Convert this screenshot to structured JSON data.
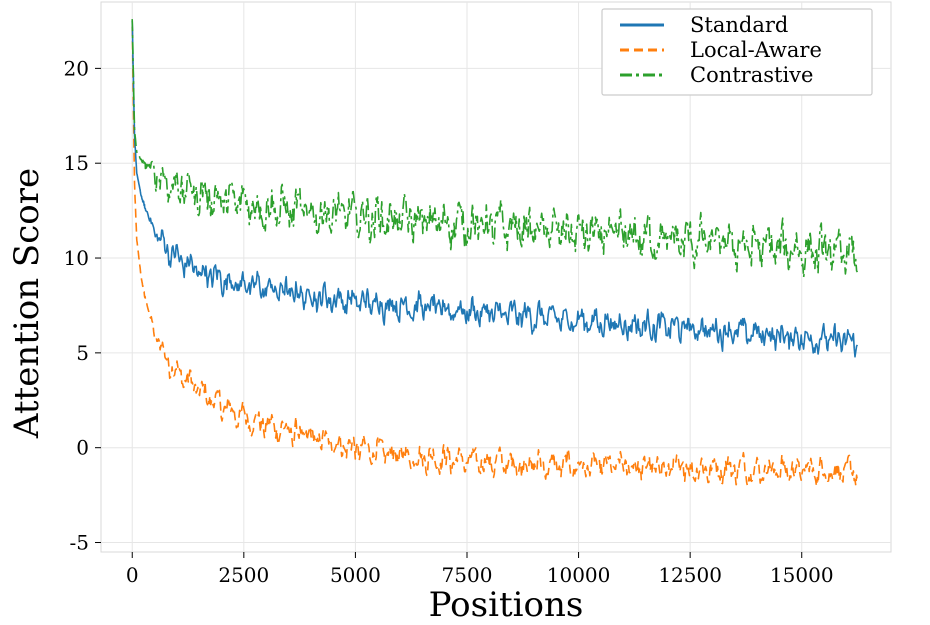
{
  "chart_data": {
    "type": "line",
    "xlabel": "Positions",
    "ylabel": "Attention Score",
    "xlim": [
      -700,
      17000
    ],
    "ylim": [
      -5.5,
      23.5
    ],
    "xticks": [
      0,
      2500,
      5000,
      7500,
      10000,
      12500,
      15000
    ],
    "xtick_labels": [
      "0",
      "2500",
      "5000",
      "7500",
      "10000",
      "12500",
      "15000"
    ],
    "yticks": [
      -5,
      0,
      5,
      10,
      15,
      20
    ],
    "ytick_labels": [
      "-5",
      "0",
      "5",
      "10",
      "15",
      "20"
    ],
    "grid": true,
    "legend_position": "top-right",
    "series": [
      {
        "name": "Standard",
        "color": "#1f77b4",
        "dash": "solid",
        "x": [
          0,
          50,
          100,
          200,
          300,
          500,
          750,
          1000,
          1500,
          2000,
          2500,
          3000,
          4000,
          5000,
          6000,
          7500,
          9000,
          10000,
          11000,
          12500,
          14000,
          15000,
          15500,
          16000,
          16250
        ],
        "values": [
          22.5,
          16.5,
          14.5,
          13.3,
          12.6,
          11.4,
          10.6,
          10.0,
          9.3,
          8.9,
          8.6,
          8.4,
          8.0,
          7.7,
          7.5,
          7.2,
          6.9,
          6.7,
          6.5,
          6.3,
          6.0,
          5.8,
          5.7,
          5.6,
          5.5
        ],
        "noise_amplitude": 1.0
      },
      {
        "name": "Local-Aware",
        "color": "#ff7f0e",
        "dash": "dashed",
        "x": [
          0,
          50,
          100,
          200,
          300,
          500,
          750,
          1000,
          1500,
          2000,
          2500,
          3000,
          4000,
          5000,
          6000,
          7500,
          9000,
          10000,
          11000,
          12500,
          14000,
          15000,
          15500,
          16000,
          16250
        ],
        "values": [
          22.2,
          14.0,
          11.0,
          9.0,
          7.8,
          6.0,
          4.8,
          4.0,
          3.0,
          2.2,
          1.6,
          1.2,
          0.5,
          0.0,
          -0.4,
          -0.7,
          -0.9,
          -1.0,
          -1.0,
          -1.1,
          -1.1,
          -1.2,
          -1.2,
          -1.3,
          -1.3
        ],
        "noise_amplitude": 1.0
      },
      {
        "name": "Contrastive",
        "color": "#2ca02c",
        "dash": "dashdot",
        "x": [
          0,
          50,
          100,
          200,
          300,
          500,
          750,
          1000,
          1500,
          2000,
          2500,
          3000,
          4000,
          5000,
          6000,
          7500,
          9000,
          10000,
          11000,
          12500,
          14000,
          15000,
          15500,
          16000,
          16250
        ],
        "values": [
          22.6,
          16.8,
          15.6,
          15.2,
          14.9,
          14.5,
          14.1,
          13.8,
          13.4,
          13.1,
          12.9,
          12.7,
          12.4,
          12.2,
          12.0,
          11.8,
          11.5,
          11.3,
          11.1,
          10.9,
          10.6,
          10.4,
          10.3,
          10.2,
          10.1
        ],
        "noise_amplitude": 1.6
      }
    ]
  }
}
